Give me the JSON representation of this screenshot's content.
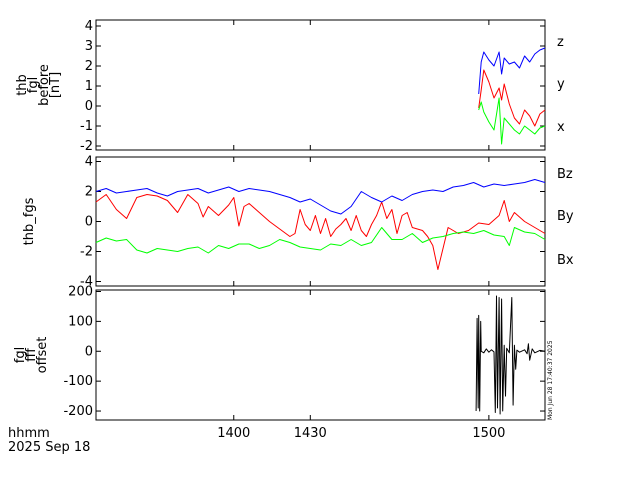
{
  "chart_data": [
    {
      "type": "line",
      "ylabel_lines": [
        "thb",
        "fgl",
        "before",
        "[nT]"
      ],
      "ylim": [
        -2.2,
        4.3
      ],
      "yticks": [
        4,
        3,
        2,
        1,
        0,
        -1,
        -2
      ],
      "xlim": [
        1346,
        1522
      ],
      "grid": false,
      "legend": "right",
      "series": [
        {
          "name": "z",
          "color": "#ff0000",
          "x": [
            1496,
            1497,
            1498,
            1500,
            1502,
            1504,
            1505,
            1506,
            1508,
            1510,
            1512,
            1514,
            1516,
            1518,
            1520,
            1522
          ],
          "y": [
            -0.1,
            0.8,
            1.8,
            1.2,
            0.4,
            0.9,
            0.3,
            1.1,
            0.1,
            -0.6,
            -0.9,
            -0.2,
            -0.5,
            -1.0,
            -0.4,
            -0.2
          ]
        },
        {
          "name": "y",
          "color": "#00ff00",
          "x": [
            1496,
            1497,
            1498,
            1500,
            1502,
            1504,
            1505,
            1506,
            1508,
            1510,
            1512,
            1514,
            1516,
            1518,
            1520,
            1522
          ],
          "y": [
            -0.2,
            0.2,
            -0.3,
            -0.8,
            -1.2,
            0.4,
            -1.9,
            -0.6,
            -0.9,
            -1.2,
            -1.4,
            -1.0,
            -1.2,
            -1.4,
            -1.1,
            -1.0
          ]
        },
        {
          "name": "x",
          "color": "#0000ff",
          "x": [
            1496,
            1497,
            1498,
            1500,
            1502,
            1504,
            1505,
            1506,
            1508,
            1510,
            1512,
            1514,
            1516,
            1518,
            1520,
            1522
          ],
          "y": [
            0.6,
            2.2,
            2.7,
            2.3,
            2.0,
            2.7,
            1.6,
            2.4,
            2.1,
            2.2,
            1.9,
            2.5,
            2.2,
            2.6,
            2.8,
            2.9
          ]
        }
      ]
    },
    {
      "type": "line",
      "ylabel_lines": [
        "thb_fgs"
      ],
      "ylim": [
        -4.3,
        4.3
      ],
      "yticks": [
        4,
        2,
        0,
        -2,
        -4
      ],
      "xlim": [
        1346,
        1522
      ],
      "grid": false,
      "legend": "right",
      "series": [
        {
          "name": "Bz",
          "color": "#ff0000",
          "x": [
            1346,
            1350,
            1354,
            1358,
            1362,
            1366,
            1370,
            1374,
            1378,
            1382,
            1386,
            1388,
            1390,
            1394,
            1398,
            1400,
            1402,
            1404,
            1406,
            1410,
            1414,
            1418,
            1422,
            1424,
            1426,
            1428,
            1430,
            1432,
            1434,
            1436,
            1438,
            1440,
            1442,
            1444,
            1446,
            1448,
            1450,
            1452,
            1454,
            1456,
            1458,
            1460,
            1462,
            1464,
            1466,
            1468,
            1470,
            1474,
            1476,
            1478,
            1480,
            1484,
            1488,
            1492,
            1496,
            1500,
            1504,
            1506,
            1508,
            1510,
            1514,
            1518,
            1522
          ],
          "y": [
            1.3,
            1.8,
            0.8,
            0.2,
            1.6,
            1.8,
            1.7,
            1.4,
            0.6,
            1.8,
            1.2,
            0.3,
            1.0,
            0.4,
            1.1,
            1.6,
            -0.3,
            1.0,
            1.2,
            0.6,
            0.0,
            -0.5,
            -1.0,
            -0.8,
            0.8,
            -0.2,
            -0.6,
            0.4,
            -0.8,
            0.2,
            -1.0,
            -0.5,
            -0.2,
            0.2,
            -0.6,
            0.4,
            -0.6,
            -1.0,
            -0.2,
            0.4,
            1.3,
            0.2,
            0.8,
            -0.8,
            0.4,
            0.6,
            -0.4,
            -0.6,
            -1.0,
            -1.6,
            -3.2,
            -0.4,
            -0.8,
            -0.6,
            -0.1,
            -0.2,
            0.4,
            1.4,
            0.0,
            0.6,
            0.0,
            -0.4,
            -0.8
          ]
        },
        {
          "name": "By",
          "color": "#00ff00",
          "x": [
            1346,
            1350,
            1354,
            1358,
            1362,
            1366,
            1370,
            1374,
            1378,
            1382,
            1386,
            1390,
            1394,
            1398,
            1402,
            1406,
            1410,
            1414,
            1418,
            1422,
            1426,
            1430,
            1434,
            1438,
            1442,
            1446,
            1450,
            1454,
            1458,
            1462,
            1466,
            1470,
            1474,
            1478,
            1482,
            1486,
            1490,
            1494,
            1498,
            1502,
            1506,
            1508,
            1510,
            1514,
            1518,
            1522
          ],
          "y": [
            -1.4,
            -1.1,
            -1.3,
            -1.2,
            -1.9,
            -2.1,
            -1.8,
            -1.9,
            -2.0,
            -1.8,
            -1.7,
            -2.1,
            -1.6,
            -1.8,
            -1.5,
            -1.5,
            -1.8,
            -1.6,
            -1.2,
            -1.4,
            -1.7,
            -1.8,
            -1.9,
            -1.5,
            -1.6,
            -1.2,
            -1.6,
            -1.4,
            -0.4,
            -1.2,
            -1.2,
            -0.8,
            -1.4,
            -1.1,
            -1.0,
            -0.8,
            -0.7,
            -0.8,
            -0.6,
            -0.9,
            -1.0,
            -1.6,
            -0.4,
            -0.7,
            -0.8,
            -1.2
          ]
        },
        {
          "name": "Bx",
          "color": "#0000ff",
          "x": [
            1346,
            1350,
            1354,
            1358,
            1362,
            1366,
            1370,
            1374,
            1378,
            1382,
            1386,
            1390,
            1394,
            1398,
            1402,
            1406,
            1410,
            1414,
            1418,
            1422,
            1426,
            1430,
            1434,
            1438,
            1442,
            1446,
            1450,
            1454,
            1458,
            1462,
            1466,
            1470,
            1474,
            1478,
            1482,
            1486,
            1490,
            1494,
            1498,
            1502,
            1506,
            1510,
            1514,
            1518,
            1522
          ],
          "y": [
            2.0,
            2.2,
            1.9,
            2.0,
            2.1,
            2.2,
            1.9,
            1.7,
            2.0,
            2.1,
            2.2,
            1.9,
            2.1,
            2.3,
            2.0,
            2.2,
            2.1,
            2.0,
            1.8,
            1.6,
            1.3,
            1.5,
            1.1,
            0.7,
            0.5,
            1.0,
            2.0,
            1.6,
            1.3,
            1.7,
            1.4,
            1.8,
            2.0,
            2.1,
            2.0,
            2.3,
            2.4,
            2.6,
            2.3,
            2.5,
            2.4,
            2.5,
            2.6,
            2.8,
            2.6
          ]
        }
      ]
    },
    {
      "type": "line",
      "ylabel_lines": [
        "fgl",
        "fff",
        "offset"
      ],
      "ylim": [
        -230,
        205
      ],
      "yticks": [
        200,
        100,
        0,
        -100,
        -200
      ],
      "xlim": [
        1346,
        1522
      ],
      "grid": false,
      "legend": "none",
      "series": [
        {
          "color": "#000000",
          "x": [
            1495,
            1495.4,
            1495.8,
            1496,
            1496.4,
            1496.8,
            1497,
            1498,
            1499,
            1500,
            1501,
            1502,
            1502.5,
            1503,
            1503.4,
            1504,
            1504.4,
            1505,
            1505.4,
            1506,
            1506.5,
            1507,
            1508,
            1509,
            1509.5,
            1510,
            1510.5,
            1511,
            1512,
            1514,
            1515,
            1515.5,
            1516,
            1517,
            1518,
            1520,
            1522
          ],
          "y": [
            -200,
            110,
            -190,
            120,
            -200,
            100,
            0,
            -5,
            8,
            -3,
            5,
            -2,
            -205,
            185,
            -190,
            180,
            -210,
            175,
            -200,
            20,
            -150,
            10,
            -5,
            180,
            -180,
            20,
            -60,
            4,
            -3,
            5,
            -8,
            25,
            -30,
            8,
            -5,
            3,
            0
          ]
        }
      ]
    }
  ],
  "xaxis": {
    "ticks": [
      {
        "value": 1400,
        "label": "1400"
      },
      {
        "value": 1430,
        "label": "1430"
      },
      {
        "value": 1500,
        "label": "1500"
      }
    ],
    "label": "hhmm",
    "date": "2025 Sep 18"
  },
  "stamp": "Mon Jun 28 17:40:37 2025"
}
